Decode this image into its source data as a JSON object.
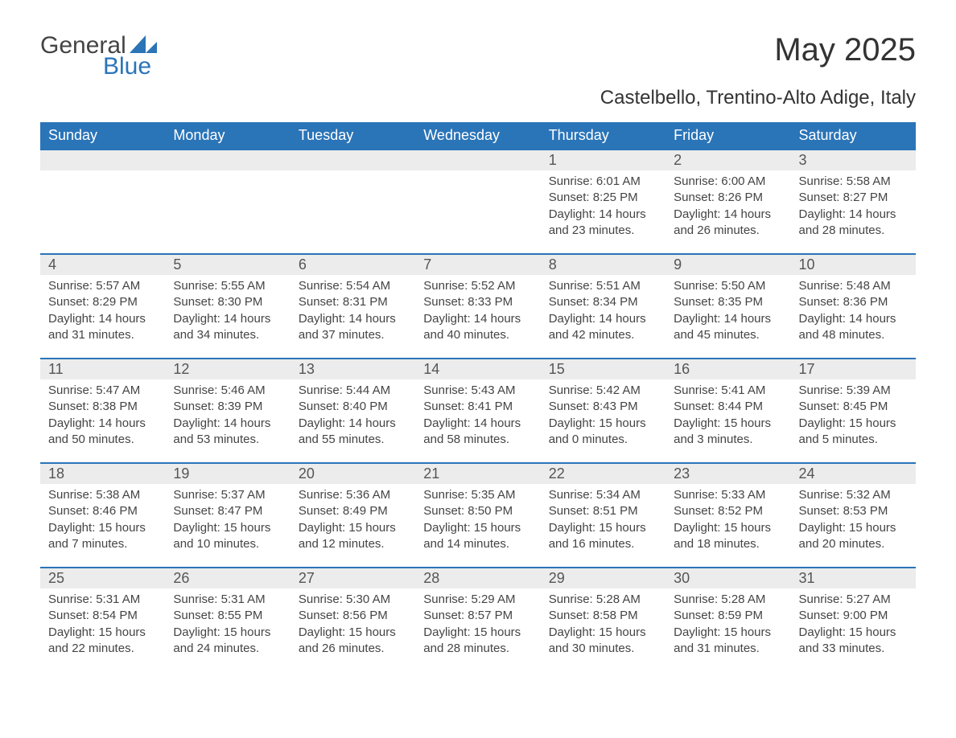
{
  "brand": {
    "word1": "General",
    "word2": "Blue",
    "accent_color": "#2a74b8",
    "text_color": "#444444"
  },
  "title": "May 2025",
  "subtitle": "Castelbello, Trentino-Alto Adige, Italy",
  "colors": {
    "header_bg": "#2a74b8",
    "header_text": "#ffffff",
    "row_divider": "#2a74b8",
    "daynum_bg": "#ececec",
    "body_text": "#444444",
    "background": "#ffffff"
  },
  "typography": {
    "title_fontsize": 40,
    "subtitle_fontsize": 24,
    "header_fontsize": 18,
    "daynum_fontsize": 18,
    "body_fontsize": 15
  },
  "calendar": {
    "type": "table",
    "columns": [
      "Sunday",
      "Monday",
      "Tuesday",
      "Wednesday",
      "Thursday",
      "Friday",
      "Saturday"
    ],
    "leading_blanks": 4,
    "days": [
      {
        "n": 1,
        "sunrise": "6:01 AM",
        "sunset": "8:25 PM",
        "daylight": "14 hours and 23 minutes."
      },
      {
        "n": 2,
        "sunrise": "6:00 AM",
        "sunset": "8:26 PM",
        "daylight": "14 hours and 26 minutes."
      },
      {
        "n": 3,
        "sunrise": "5:58 AM",
        "sunset": "8:27 PM",
        "daylight": "14 hours and 28 minutes."
      },
      {
        "n": 4,
        "sunrise": "5:57 AM",
        "sunset": "8:29 PM",
        "daylight": "14 hours and 31 minutes."
      },
      {
        "n": 5,
        "sunrise": "5:55 AM",
        "sunset": "8:30 PM",
        "daylight": "14 hours and 34 minutes."
      },
      {
        "n": 6,
        "sunrise": "5:54 AM",
        "sunset": "8:31 PM",
        "daylight": "14 hours and 37 minutes."
      },
      {
        "n": 7,
        "sunrise": "5:52 AM",
        "sunset": "8:33 PM",
        "daylight": "14 hours and 40 minutes."
      },
      {
        "n": 8,
        "sunrise": "5:51 AM",
        "sunset": "8:34 PM",
        "daylight": "14 hours and 42 minutes."
      },
      {
        "n": 9,
        "sunrise": "5:50 AM",
        "sunset": "8:35 PM",
        "daylight": "14 hours and 45 minutes."
      },
      {
        "n": 10,
        "sunrise": "5:48 AM",
        "sunset": "8:36 PM",
        "daylight": "14 hours and 48 minutes."
      },
      {
        "n": 11,
        "sunrise": "5:47 AM",
        "sunset": "8:38 PM",
        "daylight": "14 hours and 50 minutes."
      },
      {
        "n": 12,
        "sunrise": "5:46 AM",
        "sunset": "8:39 PM",
        "daylight": "14 hours and 53 minutes."
      },
      {
        "n": 13,
        "sunrise": "5:44 AM",
        "sunset": "8:40 PM",
        "daylight": "14 hours and 55 minutes."
      },
      {
        "n": 14,
        "sunrise": "5:43 AM",
        "sunset": "8:41 PM",
        "daylight": "14 hours and 58 minutes."
      },
      {
        "n": 15,
        "sunrise": "5:42 AM",
        "sunset": "8:43 PM",
        "daylight": "15 hours and 0 minutes."
      },
      {
        "n": 16,
        "sunrise": "5:41 AM",
        "sunset": "8:44 PM",
        "daylight": "15 hours and 3 minutes."
      },
      {
        "n": 17,
        "sunrise": "5:39 AM",
        "sunset": "8:45 PM",
        "daylight": "15 hours and 5 minutes."
      },
      {
        "n": 18,
        "sunrise": "5:38 AM",
        "sunset": "8:46 PM",
        "daylight": "15 hours and 7 minutes."
      },
      {
        "n": 19,
        "sunrise": "5:37 AM",
        "sunset": "8:47 PM",
        "daylight": "15 hours and 10 minutes."
      },
      {
        "n": 20,
        "sunrise": "5:36 AM",
        "sunset": "8:49 PM",
        "daylight": "15 hours and 12 minutes."
      },
      {
        "n": 21,
        "sunrise": "5:35 AM",
        "sunset": "8:50 PM",
        "daylight": "15 hours and 14 minutes."
      },
      {
        "n": 22,
        "sunrise": "5:34 AM",
        "sunset": "8:51 PM",
        "daylight": "15 hours and 16 minutes."
      },
      {
        "n": 23,
        "sunrise": "5:33 AM",
        "sunset": "8:52 PM",
        "daylight": "15 hours and 18 minutes."
      },
      {
        "n": 24,
        "sunrise": "5:32 AM",
        "sunset": "8:53 PM",
        "daylight": "15 hours and 20 minutes."
      },
      {
        "n": 25,
        "sunrise": "5:31 AM",
        "sunset": "8:54 PM",
        "daylight": "15 hours and 22 minutes."
      },
      {
        "n": 26,
        "sunrise": "5:31 AM",
        "sunset": "8:55 PM",
        "daylight": "15 hours and 24 minutes."
      },
      {
        "n": 27,
        "sunrise": "5:30 AM",
        "sunset": "8:56 PM",
        "daylight": "15 hours and 26 minutes."
      },
      {
        "n": 28,
        "sunrise": "5:29 AM",
        "sunset": "8:57 PM",
        "daylight": "15 hours and 28 minutes."
      },
      {
        "n": 29,
        "sunrise": "5:28 AM",
        "sunset": "8:58 PM",
        "daylight": "15 hours and 30 minutes."
      },
      {
        "n": 30,
        "sunrise": "5:28 AM",
        "sunset": "8:59 PM",
        "daylight": "15 hours and 31 minutes."
      },
      {
        "n": 31,
        "sunrise": "5:27 AM",
        "sunset": "9:00 PM",
        "daylight": "15 hours and 33 minutes."
      }
    ],
    "labels": {
      "sunrise_prefix": "Sunrise: ",
      "sunset_prefix": "Sunset: ",
      "daylight_prefix": "Daylight: "
    }
  }
}
